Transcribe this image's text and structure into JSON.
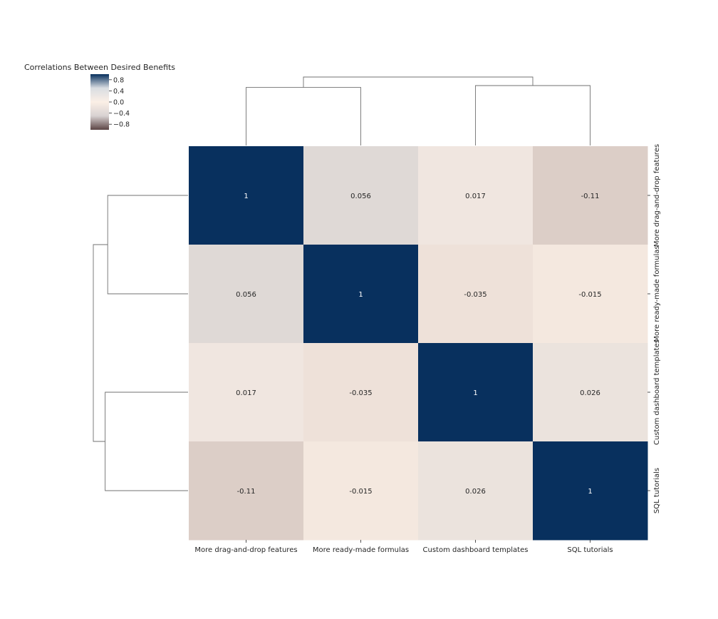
{
  "chart_data": {
    "type": "heatmap",
    "title": "Correlations Between Desired Benefits",
    "row_labels": [
      "More drag-and-drop features",
      "More ready-made formulas",
      "Custom dashboard templates",
      "SQL tutorials"
    ],
    "col_labels": [
      "More drag-and-drop features",
      "More ready-made formulas",
      "Custom dashboard templates",
      "SQL tutorials"
    ],
    "values": [
      [
        1,
        0.056,
        0.017,
        -0.11
      ],
      [
        0.056,
        1,
        -0.035,
        -0.015
      ],
      [
        0.017,
        -0.035,
        1,
        0.026
      ],
      [
        -0.11,
        -0.015,
        0.026,
        1
      ]
    ],
    "annotations": [
      [
        "1",
        "0.056",
        "0.017",
        "-0.11"
      ],
      [
        "0.056",
        "1",
        "-0.035",
        "-0.015"
      ],
      [
        "0.017",
        "-0.035",
        "1",
        "0.026"
      ],
      [
        "-0.11",
        "-0.015",
        "0.026",
        "1"
      ]
    ],
    "colorbar": {
      "range": [
        -1,
        1
      ],
      "ticks": [
        0.8,
        0.4,
        0.0,
        -0.4,
        -0.8
      ],
      "tick_labels": [
        "0.8",
        "0.4",
        "0.0",
        "−0.4",
        "−0.8"
      ],
      "colors": {
        "max": "#08305e",
        "mid": "#fbefe6",
        "min": "#5b4444",
        "mid_high": "#d9dde2",
        "mid_low": "#d8d2d2"
      }
    },
    "dendrogram_rows": {
      "merges": [
        [
          0,
          1,
          0.95
        ],
        [
          2,
          3,
          0.98
        ],
        [
          4,
          5,
          1.12
        ]
      ]
    },
    "dendrogram_cols": {
      "merges": [
        [
          0,
          1,
          0.95
        ],
        [
          2,
          3,
          0.98
        ],
        [
          4,
          5,
          1.12
        ]
      ]
    },
    "line_color": "#707070",
    "text_color": "#262626"
  }
}
